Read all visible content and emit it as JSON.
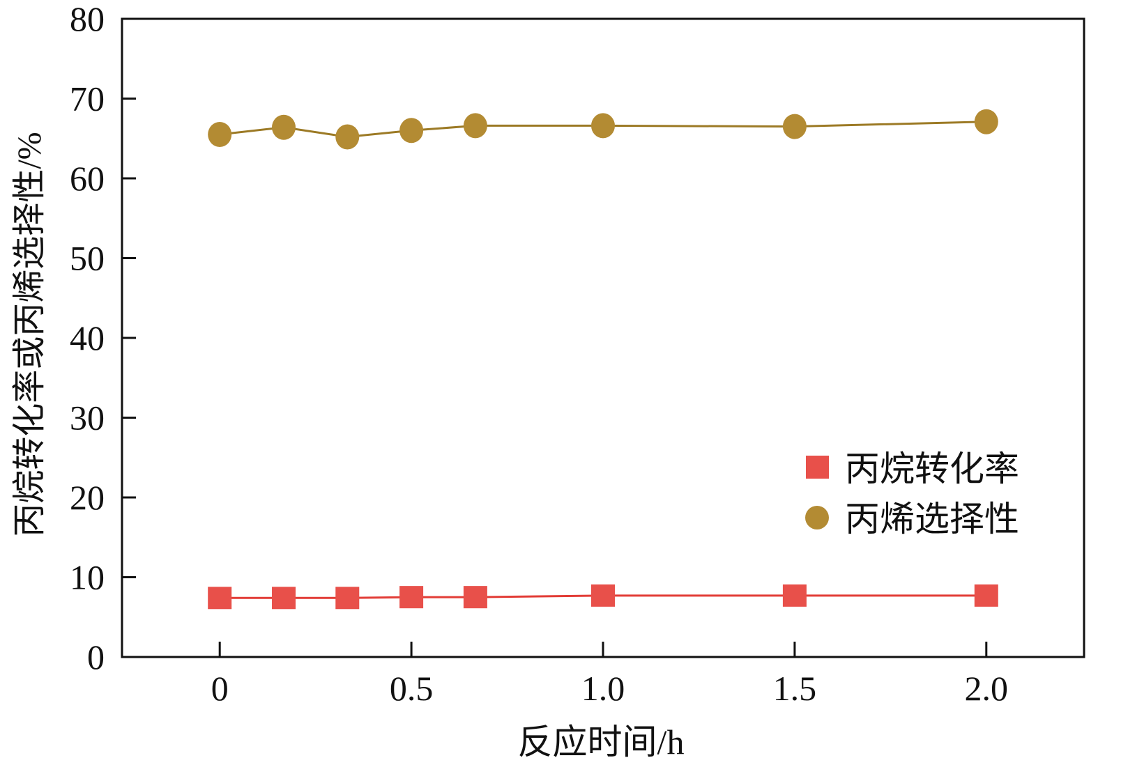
{
  "chart_data": {
    "type": "line",
    "title": "",
    "xlabel": "反应时间/h",
    "ylabel": "丙烷转化率或丙烯选择性/%",
    "xlim": [
      -0.255,
      2.255
    ],
    "ylim": [
      0,
      80
    ],
    "x_ticks": [
      0,
      0.5,
      1.0,
      1.5,
      2.0
    ],
    "x_tick_labels": [
      "0",
      "0.5",
      "1.0",
      "1.5",
      "2.0"
    ],
    "y_ticks": [
      0,
      10,
      20,
      30,
      40,
      50,
      60,
      70,
      80
    ],
    "y_tick_labels": [
      "0",
      "10",
      "20",
      "30",
      "40",
      "50",
      "60",
      "70",
      "80"
    ],
    "grid": false,
    "legend_position": "center-right",
    "x": [
      0,
      0.167,
      0.333,
      0.5,
      0.667,
      1.0,
      1.5,
      2.0
    ],
    "series": [
      {
        "name": "丙烷转化率",
        "marker": "square",
        "color": "#e8504a",
        "line_color": "#e23c36",
        "values": [
          7.4,
          7.4,
          7.4,
          7.5,
          7.5,
          7.7,
          7.7,
          7.7
        ]
      },
      {
        "name": "丙烯选择性",
        "marker": "circle",
        "color": "#b38b33",
        "line_color": "#9c7a25",
        "values": [
          65.5,
          66.4,
          65.2,
          66.0,
          66.6,
          66.6,
          66.5,
          67.1
        ]
      }
    ]
  }
}
